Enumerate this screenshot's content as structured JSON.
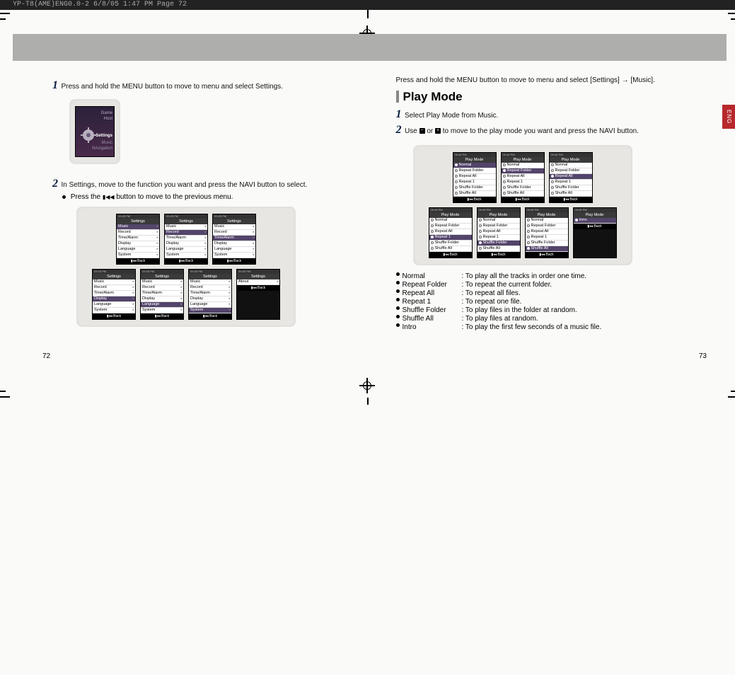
{
  "print_header": "YP-T8(AME)ENG0.0-2  6/8/05 1:47 PM  Page 72",
  "eng_tab": "ENG",
  "left": {
    "step1": "Press and hold the MENU button to move to menu and select Settings.",
    "step2": "In Settings, move to the function you want and press the NAVI button to select.",
    "sub2": "Press the",
    "sub2b": "button to move to the previous menu.",
    "pagenum": "72",
    "host_labels": [
      "Game",
      "Host",
      "Settings",
      "Music",
      "NAvigation"
    ],
    "settings_items": [
      "Music",
      "Record",
      "Time/Alarm",
      "Display",
      "Language",
      "System"
    ],
    "settings_about": "About",
    "screen_header": "Settings",
    "screen_top": "09:45 PM",
    "screen_back": "Back",
    "highlights": [
      0,
      1,
      2,
      3,
      4,
      5,
      null
    ]
  },
  "right": {
    "intro": "Press and hold the MENU button to move to menu and select [Settings] → [Music].",
    "section": "Play Mode",
    "step1": "Select Play Mode from Music.",
    "step2a": "Use",
    "step2b": "or",
    "step2c": "to move to the play mode you want and press the NAVI button.",
    "pagenum": "73",
    "screen_header": "Play Mode",
    "screen_top": "09:45 PM",
    "screen_back": "Back",
    "pm_items": [
      "Normal",
      "Repeat Folder",
      "Repeat All",
      "Repeat 1",
      "Shuffle Folder",
      "Shuffle All"
    ],
    "pm_intro_only": "Intro",
    "highlights": [
      0,
      1,
      2,
      3,
      4,
      5,
      null
    ],
    "descriptions": [
      {
        "t": "Normal",
        "d": ": To play all the tracks in order one time."
      },
      {
        "t": "Repeat Folder",
        "d": ": To repeat the current folder."
      },
      {
        "t": "Repeat All",
        "d": ": To repeat all files."
      },
      {
        "t": "Repeat 1",
        "d": ": To repeat one file."
      },
      {
        "t": "Shuffle Folder",
        "d": ": To play files in the folder at random."
      },
      {
        "t": "Shuffle All",
        "d": ": To play files at random."
      },
      {
        "t": "Intro",
        "d": ": To play the first few seconds of a music file."
      }
    ]
  }
}
